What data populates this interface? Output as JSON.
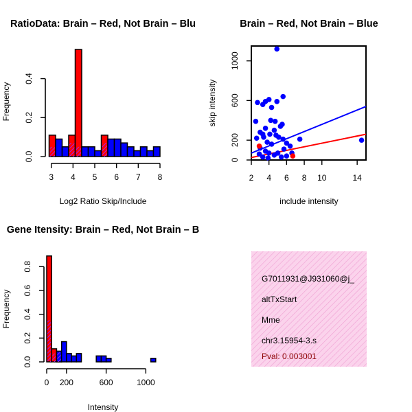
{
  "colors": {
    "red": "#ff0000",
    "blue": "#0000ff",
    "purple": "#a020f0",
    "pink": "#fbd3ec",
    "stripe": "#ef9fd2",
    "pval": "#8b0000"
  },
  "chart_data": [
    {
      "type": "bar",
      "title": "RatioData: Brain – Red, Not Brain – Blu",
      "xlabel": "Log2 Ratio Skip/Include",
      "ylabel": "Frequency",
      "xlim": [
        2.9,
        8.0
      ],
      "ylim": [
        0,
        0.55
      ],
      "xticks": [
        "3",
        "4",
        "5",
        "6",
        "7",
        "8"
      ],
      "yticks": [
        "0.0",
        "0.2",
        "0.4"
      ],
      "bin_edges": [
        2.9,
        3.2,
        3.5,
        3.8,
        4.1,
        4.4,
        4.7,
        5.0,
        5.3,
        5.6,
        5.9,
        6.2,
        6.5,
        6.8,
        7.1,
        7.4,
        7.7,
        8.0
      ],
      "series": [
        {
          "name": "Brain",
          "values": [
            0.11,
            0,
            0,
            0.11,
            0.55,
            0,
            0,
            0,
            0.11,
            0,
            0,
            0,
            0,
            0,
            0,
            0,
            0
          ]
        },
        {
          "name": "Not Brain",
          "values": [
            0.05,
            0.09,
            0.05,
            0.07,
            0.05,
            0.05,
            0.05,
            0.03,
            0.07,
            0.09,
            0.09,
            0.07,
            0.05,
            0.03,
            0.05,
            0.03,
            0.05
          ]
        }
      ]
    },
    {
      "type": "scatter",
      "title": "Brain – Red, Not Brain – Blue",
      "xlabel": "include intensity",
      "ylabel": "skip intensity",
      "xlim": [
        2,
        15
      ],
      "ylim": [
        0,
        1150
      ],
      "xticks": [
        "2",
        "4",
        "6",
        "8",
        "10",
        "14"
      ],
      "yticks": [
        "0",
        "200",
        "600",
        "1000"
      ],
      "series": [
        {
          "name": "Not Brain",
          "points": [
            [
              4.9,
              1120
            ],
            [
              2.5,
              390
            ],
            [
              2.7,
              580
            ],
            [
              3.3,
              560
            ],
            [
              3.6,
              590
            ],
            [
              4.0,
              610
            ],
            [
              4.3,
              530
            ],
            [
              4.9,
              590
            ],
            [
              5.6,
              640
            ],
            [
              4.2,
              400
            ],
            [
              4.7,
              390
            ],
            [
              3.0,
              280
            ],
            [
              2.6,
              220
            ],
            [
              3.3,
              260
            ],
            [
              3.6,
              320
            ],
            [
              3.4,
              230
            ],
            [
              4.1,
              260
            ],
            [
              4.6,
              300
            ],
            [
              4.8,
              250
            ],
            [
              5.3,
              340
            ],
            [
              5.5,
              360
            ],
            [
              5.1,
              230
            ],
            [
              5.6,
              210
            ],
            [
              6.0,
              170
            ],
            [
              6.4,
              140
            ],
            [
              5.7,
              110
            ],
            [
              4.3,
              160
            ],
            [
              3.8,
              180
            ],
            [
              3.0,
              120
            ],
            [
              2.9,
              60
            ],
            [
              3.6,
              90
            ],
            [
              4.0,
              70
            ],
            [
              4.6,
              50
            ],
            [
              5.0,
              70
            ],
            [
              5.4,
              30
            ],
            [
              6.0,
              40
            ],
            [
              6.6,
              70
            ],
            [
              3.3,
              30
            ],
            [
              3.9,
              20
            ],
            [
              7.5,
              210
            ],
            [
              14.5,
              200
            ]
          ]
        },
        {
          "name": "Brain",
          "points": [
            [
              2.9,
              140
            ],
            [
              6.7,
              40
            ]
          ]
        }
      ],
      "fit_lines": [
        {
          "name": "Not Brain",
          "x": [
            2,
            15
          ],
          "y": [
            70,
            540
          ]
        },
        {
          "name": "Brain",
          "x": [
            2,
            15
          ],
          "y": [
            25,
            260
          ]
        }
      ]
    },
    {
      "type": "bar",
      "title": "Gene Itensity: Brain – Red, Not Brain – B",
      "xlabel": "Intensity",
      "ylabel": "Frequency",
      "xlim": [
        0,
        1150
      ],
      "ylim": [
        0,
        0.9
      ],
      "xticks": [
        "0",
        "200",
        "600",
        "1000"
      ],
      "yticks": [
        "0.0",
        "0.2",
        "0.4",
        "0.6",
        "0.8"
      ],
      "bin_edges": [
        0,
        50,
        100,
        150,
        200,
        250,
        300,
        350,
        400,
        450,
        500,
        550,
        600,
        650,
        700,
        750,
        800,
        850,
        900,
        950,
        1000,
        1050,
        1100,
        1150
      ],
      "series": [
        {
          "name": "Brain",
          "values": [
            0.89,
            0.11,
            0.08,
            0,
            0,
            0,
            0,
            0,
            0,
            0,
            0,
            0,
            0,
            0,
            0,
            0,
            0,
            0,
            0,
            0,
            0,
            0,
            0
          ]
        },
        {
          "name": "Not Brain",
          "values": [
            0.35,
            0.07,
            0.09,
            0.17,
            0.07,
            0.05,
            0.07,
            0,
            0,
            0,
            0.05,
            0.05,
            0.03,
            0,
            0,
            0,
            0,
            0,
            0,
            0,
            0,
            0.03,
            0
          ]
        }
      ]
    }
  ],
  "info_panel": {
    "lines": [
      "G7011931@J931060@j_",
      "altTxStart",
      "Mme",
      "chr3.15954-3.s"
    ],
    "pval": "Pval: 0.003001"
  }
}
